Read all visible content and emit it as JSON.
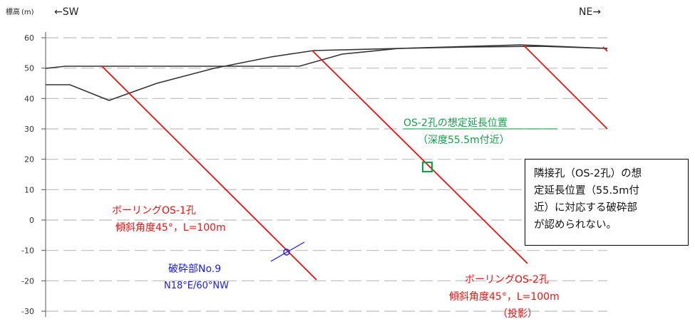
{
  "header": {
    "elevation_label": "標高",
    "elevation_unit": "(m)",
    "left_direction": "←SW",
    "right_direction": "NE→"
  },
  "axis": {
    "y_min": -30,
    "y_max": 60,
    "ticks": [
      "60",
      "50",
      "40",
      "30",
      "20",
      "10",
      "0",
      "-10",
      "-20",
      "-30"
    ],
    "grid": "dashed"
  },
  "borehole_os1": {
    "line1": "ボーリングOS-1孔",
    "line2": "傾斜角度45°，L=100m",
    "color": "#ee1111"
  },
  "borehole_os2": {
    "line1": "ボーリングOS-2孔",
    "line2": "傾斜角度45°，L=100m",
    "line3": "（投影）",
    "color": "#ee1111"
  },
  "fracture_zone": {
    "title": "破砕部No.9",
    "orientation": "N18°E/60°NW",
    "color": "#1a1aff"
  },
  "extension_point": {
    "line1": "OS-2孔の想定延長位置",
    "line2": "（深度55.5m付近）",
    "color": "#11a04a"
  },
  "note": {
    "lines": [
      "隣接孔（OS-2孔）の想",
      "定延長位置（55.5m付",
      "近）に対応する破砕部",
      "が認められない。"
    ]
  }
}
